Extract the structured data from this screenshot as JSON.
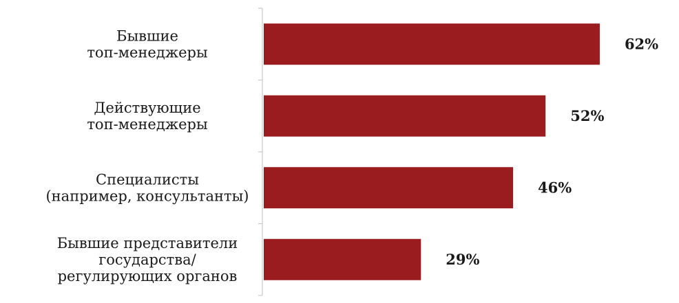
{
  "chart_data": {
    "type": "bar",
    "orientation": "horizontal",
    "categories": [
      [
        "Бывшие",
        "топ-менеджеры"
      ],
      [
        "Действующие",
        "топ-менеджеры"
      ],
      [
        "Специалисты",
        "(например, консультанты)"
      ],
      [
        "Бывшие представители",
        "государства/",
        "регулирующих органов"
      ]
    ],
    "values": [
      62,
      52,
      46,
      29
    ],
    "value_labels": [
      "62%",
      "52%",
      "46%",
      "29%"
    ],
    "unit": "%",
    "xlim": [
      0,
      100
    ],
    "bar_color": "#9b1c1f",
    "axis_color": "#c8c8c8",
    "grid": false,
    "legend": "none"
  }
}
